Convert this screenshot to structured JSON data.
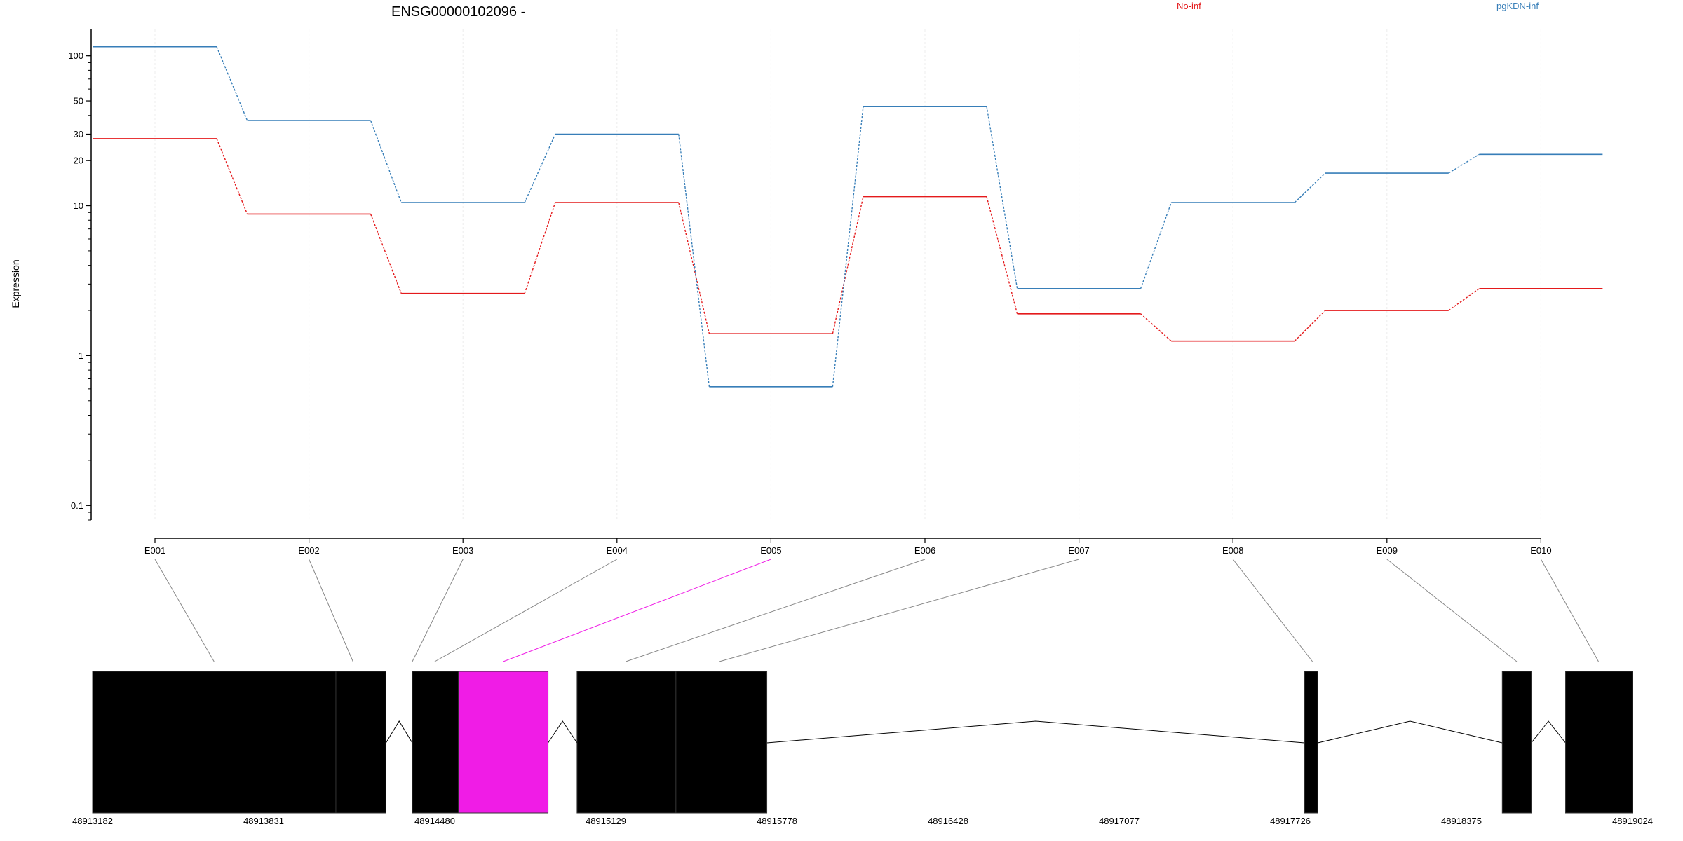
{
  "chart_data": {
    "type": "line",
    "title": "ENSG00000102096 -",
    "ylabel": "Expression",
    "yscale": "log",
    "ylim": [
      0.08,
      150
    ],
    "yticks": [
      0.1,
      1,
      10,
      20,
      30,
      50,
      100
    ],
    "categories": [
      "E001",
      "E002",
      "E003",
      "E004",
      "E005",
      "E006",
      "E007",
      "E008",
      "E009",
      "E010"
    ],
    "series": [
      {
        "name": "No-inf",
        "color": "#e41a1c",
        "values": [
          28,
          8.8,
          2.6,
          10.5,
          1.4,
          11.5,
          1.9,
          1.25,
          2.0,
          2.8
        ]
      },
      {
        "name": "pgKDN-inf",
        "color": "#377eb8",
        "values": [
          115,
          37,
          10.5,
          30,
          0.62,
          46,
          2.8,
          10.5,
          16.5,
          22
        ]
      }
    ],
    "highlight_color": "#f01ce6",
    "exon_fill": "#cccccc",
    "gene_model": {
      "coord_range": [
        48913182,
        48919024
      ],
      "coord_ticks": [
        "48913182",
        "48913831",
        "48914480",
        "48915129",
        "48915778",
        "48916428",
        "48917077",
        "48917726",
        "48918375",
        "48919024"
      ],
      "exon_blocks": [
        {
          "start": 48913182,
          "end": 48914105,
          "highlight": false
        },
        {
          "start": 48914105,
          "end": 48914295,
          "highlight": false
        },
        {
          "start": 48914395,
          "end": 48914570,
          "highlight": false
        },
        {
          "start": 48914570,
          "end": 48914910,
          "highlight": true
        },
        {
          "start": 48915020,
          "end": 48915395,
          "highlight": false
        },
        {
          "start": 48915395,
          "end": 48915740,
          "highlight": false
        },
        {
          "start": 48917780,
          "end": 48917830,
          "highlight": false
        },
        {
          "start": 48918530,
          "end": 48918640,
          "highlight": false
        },
        {
          "start": 48918770,
          "end": 48919024,
          "highlight": false
        }
      ],
      "exon_anchors": [
        48913643,
        48914170,
        48914395,
        48914480,
        48914740,
        48915205,
        48915560,
        48917810,
        48918585,
        48918895
      ]
    }
  }
}
